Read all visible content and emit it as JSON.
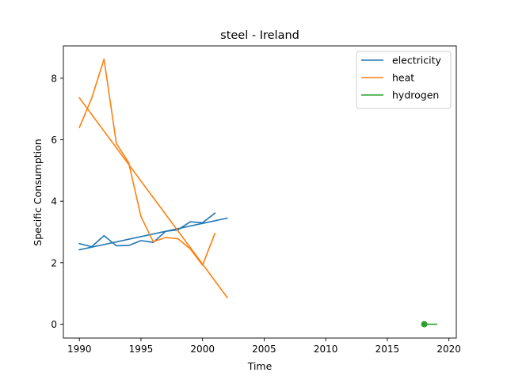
{
  "chart_data": {
    "type": "line",
    "title": "steel - Ireland",
    "xlabel": "Time",
    "ylabel": "Specific Consumption",
    "xlim": [
      1988.7,
      2020.6
    ],
    "ylim": [
      -0.45,
      9.05
    ],
    "xticks": [
      1990,
      1995,
      2000,
      2005,
      2010,
      2015,
      2020
    ],
    "yticks": [
      0,
      2,
      4,
      6,
      8
    ],
    "grid": false,
    "legend_position": "top-right",
    "series": [
      {
        "name": "electricity",
        "color": "#1f77b4",
        "lines": [
          {
            "x": [
              1990,
              1991,
              1992,
              1993,
              1994,
              1995,
              1996,
              1997,
              1998,
              1999,
              2000,
              2001
            ],
            "y": [
              2.62,
              2.52,
              2.88,
              2.55,
              2.56,
              2.72,
              2.66,
              3.02,
              3.07,
              3.33,
              3.3,
              3.61
            ]
          },
          {
            "x": [
              1990,
              2002
            ],
            "y": [
              2.42,
              3.45
            ]
          }
        ]
      },
      {
        "name": "heat",
        "color": "#ff7f0e",
        "lines": [
          {
            "x": [
              1990,
              1991,
              1992,
              1993,
              1994,
              1995,
              1996,
              1997,
              1998,
              1999,
              2000,
              2001
            ],
            "y": [
              6.4,
              7.35,
              8.62,
              5.88,
              5.25,
              3.5,
              2.68,
              2.82,
              2.78,
              2.45,
              1.92,
              2.95
            ]
          },
          {
            "x": [
              1990,
              2002
            ],
            "y": [
              7.36,
              0.87
            ]
          }
        ]
      },
      {
        "name": "hydrogen",
        "color": "#2ca02c",
        "lines": [
          {
            "x": [
              2018,
              2019
            ],
            "y": [
              0,
              0
            ]
          }
        ],
        "markers": [
          {
            "x": 2018,
            "y": 0
          }
        ]
      }
    ]
  }
}
